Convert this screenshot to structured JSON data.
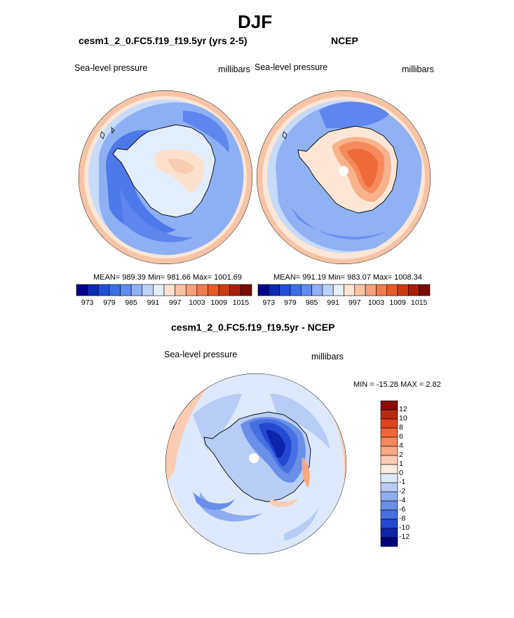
{
  "title": "DJF",
  "variable_label": "Sea-level pressure",
  "units_label": "millibars",
  "panels": {
    "model": {
      "title": "cesm1_2_0.FC5.f19_f19.5yr (yrs 2-5)",
      "stats": "MEAN= 989.39  Min= 981.66  Max= 1001.69"
    },
    "obs": {
      "title": "NCEP",
      "stats": "MEAN= 991.19  Min= 983.07  Max= 1008.34"
    },
    "diff": {
      "title": "cesm1_2_0.FC5.f19_f19.5yr - NCEP",
      "stats": "MIN = -15.28 MAX =   2.82"
    }
  },
  "colorbar_abs": {
    "ticks": [
      "973",
      "979",
      "985",
      "991",
      "997",
      "1003",
      "1009",
      "1015"
    ],
    "colors": [
      "#00008b",
      "#0a2ab0",
      "#1f4fd8",
      "#3a6fe8",
      "#5e8cf0",
      "#8fb0f5",
      "#bdd2fa",
      "#e4eefc",
      "#fde4d2",
      "#f8c2a0",
      "#f5a07a",
      "#f07b50",
      "#e85a2a",
      "#cc3a14",
      "#a81e0a",
      "#7a0a02"
    ]
  },
  "colorbar_diff": {
    "labels": [
      "12",
      "10",
      "8",
      "6",
      "4",
      "2",
      "1",
      "0",
      "-1",
      "-2",
      "-4",
      "-6",
      "-8",
      "-10",
      "-12"
    ],
    "colors": [
      "#8b0a02",
      "#b52a10",
      "#dc4420",
      "#f26538",
      "#f5875a",
      "#f8a884",
      "#fbccb2",
      "#fdebe0",
      "#dde9fb",
      "#b7cdf6",
      "#8eaef0",
      "#6a8fe9",
      "#4670e0",
      "#2348d2",
      "#0c24ac",
      "#00007a"
    ]
  }
}
